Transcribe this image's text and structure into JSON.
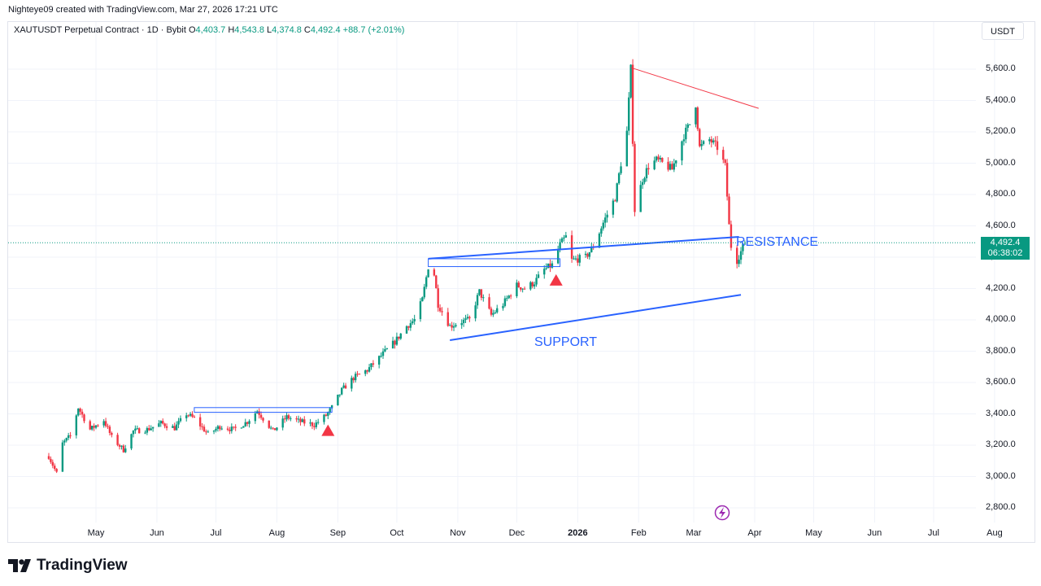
{
  "header": {
    "attribution": "Nighteye09 created with TradingView.com, Mar 27, 2026 17:21 UTC",
    "symbol": "XAUTUSDT Perpetual Contract · 1D · Bybit",
    "ohlc": {
      "o_label": "O",
      "o": "4,403.7",
      "h_label": "H",
      "h": "4,543.8",
      "l_label": "L",
      "l": "4,374.8",
      "c_label": "C",
      "c": "4,492.4",
      "change": "+88.7 (+2.01%)"
    },
    "currency": "USDT"
  },
  "last_price": {
    "price": "4,492.4",
    "countdown": "06:38:02"
  },
  "brand": {
    "name": "TradingView"
  },
  "colors": {
    "up": "#089981",
    "down": "#f23645",
    "trend": "#2962ff",
    "triangle": "#f23645",
    "resistance_line": "#f23645",
    "purple_icon": "#9c27b0"
  },
  "icons": {
    "flash": "lightning-bolt-icon",
    "logo": "tradingview-logo-icon"
  },
  "chart_data": {
    "type": "candlestick",
    "y_range": [
      2720,
      5720
    ],
    "price_ticks": [
      "5,600.0",
      "5,400.0",
      "5,200.0",
      "5,000.0",
      "4,800.0",
      "4,600.0",
      "4,400.0",
      "4,200.0",
      "4,000.0",
      "3,800.0",
      "3,600.0",
      "3,400.0",
      "3,200.0",
      "3,000.0",
      "2,800.0"
    ],
    "price_tick_values": [
      5600,
      5400,
      5200,
      5000,
      4800,
      4600,
      4400,
      4200,
      4000,
      3800,
      3600,
      3400,
      3200,
      3000,
      2800
    ],
    "time_ticks": [
      "May",
      "Jun",
      "Jul",
      "Aug",
      "Sep",
      "Oct",
      "Nov",
      "Dec",
      "2026",
      "Feb",
      "Mar",
      "Apr",
      "May",
      "Jun",
      "Jul",
      "Aug"
    ],
    "time_tick_dates": [
      "2025-05-01",
      "2025-06-01",
      "2025-07-01",
      "2025-08-01",
      "2025-09-01",
      "2025-10-01",
      "2025-11-01",
      "2025-12-01",
      "2026-01-01",
      "2026-02-01",
      "2026-03-01",
      "2026-04-01",
      "2026-05-01",
      "2026-06-01",
      "2026-07-01",
      "2026-08-01"
    ],
    "price_path": [
      [
        "2025-04-07",
        3130
      ],
      [
        "2025-04-11",
        3020
      ],
      [
        "2025-04-14",
        3210
      ],
      [
        "2025-04-18",
        3260
      ],
      [
        "2025-04-22",
        3440
      ],
      [
        "2025-04-28",
        3300
      ],
      [
        "2025-05-05",
        3360
      ],
      [
        "2025-05-09",
        3250
      ],
      [
        "2025-05-15",
        3170
      ],
      [
        "2025-05-20",
        3290
      ],
      [
        "2025-05-27",
        3300
      ],
      [
        "2025-06-03",
        3340
      ],
      [
        "2025-06-10",
        3310
      ],
      [
        "2025-06-16",
        3400
      ],
      [
        "2025-06-20",
        3370
      ],
      [
        "2025-06-27",
        3270
      ],
      [
        "2025-07-03",
        3320
      ],
      [
        "2025-07-10",
        3300
      ],
      [
        "2025-07-17",
        3350
      ],
      [
        "2025-07-22",
        3420
      ],
      [
        "2025-07-30",
        3290
      ],
      [
        "2025-08-06",
        3380
      ],
      [
        "2025-08-13",
        3350
      ],
      [
        "2025-08-20",
        3330
      ],
      [
        "2025-08-26",
        3390
      ],
      [
        "2025-08-29",
        3440
      ],
      [
        "2025-09-03",
        3550
      ],
      [
        "2025-09-09",
        3630
      ],
      [
        "2025-09-16",
        3680
      ],
      [
        "2025-09-23",
        3770
      ],
      [
        "2025-09-30",
        3860
      ],
      [
        "2025-10-06",
        3960
      ],
      [
        "2025-10-10",
        4000
      ],
      [
        "2025-10-14",
        4130
      ],
      [
        "2025-10-17",
        4340
      ],
      [
        "2025-10-20",
        4290
      ],
      [
        "2025-10-22",
        4100
      ],
      [
        "2025-10-28",
        3960
      ],
      [
        "2025-11-03",
        3990
      ],
      [
        "2025-11-07",
        4000
      ],
      [
        "2025-11-12",
        4180
      ],
      [
        "2025-11-18",
        4030
      ],
      [
        "2025-11-24",
        4100
      ],
      [
        "2025-12-01",
        4220
      ],
      [
        "2025-12-05",
        4200
      ],
      [
        "2025-12-10",
        4240
      ],
      [
        "2025-12-15",
        4320
      ],
      [
        "2025-12-19",
        4350
      ],
      [
        "2025-12-23",
        4480
      ],
      [
        "2025-12-26",
        4530
      ],
      [
        "2025-12-29",
        4380
      ],
      [
        "2026-01-05",
        4400
      ],
      [
        "2026-01-09",
        4470
      ],
      [
        "2026-01-14",
        4620
      ],
      [
        "2026-01-20",
        4780
      ],
      [
        "2026-01-23",
        5000
      ],
      [
        "2026-01-26",
        5200
      ],
      [
        "2026-01-28",
        5600
      ],
      [
        "2026-01-30",
        4700
      ],
      [
        "2026-02-03",
        4900
      ],
      [
        "2026-02-06",
        4980
      ],
      [
        "2026-02-10",
        5020
      ],
      [
        "2026-02-13",
        5000
      ],
      [
        "2026-02-18",
        4960
      ],
      [
        "2026-02-24",
        5180
      ],
      [
        "2026-02-27",
        5250
      ],
      [
        "2026-03-02",
        5380
      ],
      [
        "2026-03-04",
        5100
      ],
      [
        "2026-03-09",
        5150
      ],
      [
        "2026-03-13",
        5100
      ],
      [
        "2026-03-17",
        4980
      ],
      [
        "2026-03-19",
        4600
      ],
      [
        "2026-03-20",
        4470
      ],
      [
        "2026-03-23",
        4380
      ],
      [
        "2026-03-27",
        4492
      ]
    ],
    "drawings": {
      "resistance_label": "RESISTANCE",
      "support_label": "SUPPORT",
      "resistance_line": [
        [
          "2025-10-17",
          4390
        ],
        [
          "2026-03-24",
          4530
        ]
      ],
      "support_line": [
        [
          "2025-10-28",
          3870
        ],
        [
          "2026-03-25",
          4160
        ]
      ],
      "upper_red_line": [
        [
          "2026-01-28",
          5610
        ],
        [
          "2026-04-03",
          5350
        ]
      ],
      "box_1": [
        [
          "2025-06-20",
          3410
        ],
        [
          "2025-08-29",
          3440
        ]
      ],
      "box_2": [
        [
          "2025-10-17",
          4340
        ],
        [
          "2025-12-23",
          4390
        ]
      ],
      "triangle_markers": [
        [
          "2025-08-27",
          3290
        ],
        [
          "2025-12-21",
          4250
        ]
      ],
      "last_price_line": 4492.4
    }
  }
}
